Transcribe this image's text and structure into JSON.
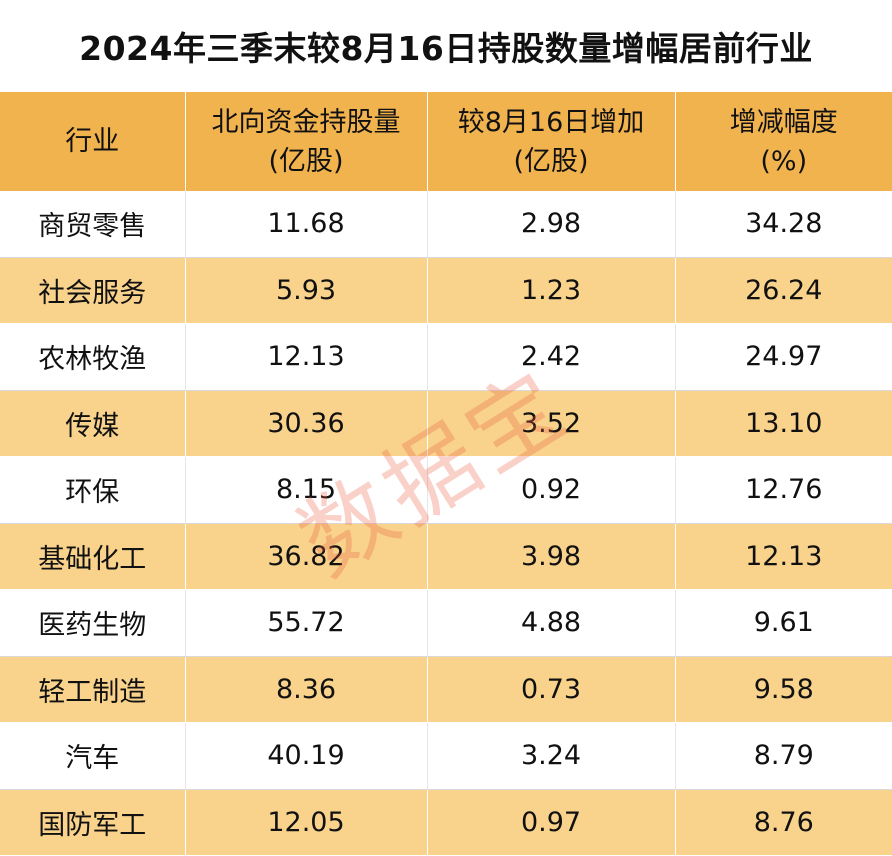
{
  "title": "2024年三季末较8月16日持股数量增幅居前行业",
  "watermark": "数据宝",
  "chart_data": {
    "type": "table",
    "title": "2024年三季末较8月16日持股数量增幅居前行业",
    "columns": [
      [
        "行业"
      ],
      [
        "北向资金持股量",
        "(亿股)"
      ],
      [
        "较8月16日增加",
        "(亿股)"
      ],
      [
        "增减幅度",
        "(%)"
      ]
    ],
    "rows": [
      [
        "商贸零售",
        "11.68",
        "2.98",
        "34.28"
      ],
      [
        "社会服务",
        "5.93",
        "1.23",
        "26.24"
      ],
      [
        "农林牧渔",
        "12.13",
        "2.42",
        "24.97"
      ],
      [
        "传媒",
        "30.36",
        "3.52",
        "13.10"
      ],
      [
        "环保",
        "8.15",
        "0.92",
        "12.76"
      ],
      [
        "基础化工",
        "36.82",
        "3.98",
        "12.13"
      ],
      [
        "医药生物",
        "55.72",
        "4.88",
        "9.61"
      ],
      [
        "轻工制造",
        "8.36",
        "0.73",
        "9.58"
      ],
      [
        "汽车",
        "40.19",
        "3.24",
        "8.79"
      ],
      [
        "国防军工",
        "12.05",
        "0.97",
        "8.76"
      ]
    ]
  },
  "colors": {
    "header_bg": "#f1b34e",
    "stripe_bg": "#f9d38c",
    "watermark": "#e85a3c"
  }
}
